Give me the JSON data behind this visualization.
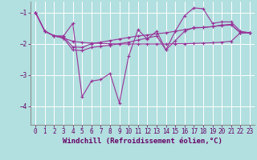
{
  "background_color": "#b2dfdf",
  "plot_bg_color": "#b2dfdf",
  "line_color": "#993399",
  "grid_color": "#ffffff",
  "spine_color": "#888888",
  "xlabel": "Windchill (Refroidissement éolien,°C)",
  "xlabel_fontsize": 6.5,
  "xlabel_color": "#660066",
  "tick_fontsize": 5.5,
  "tick_color": "#660066",
  "xlim": [
    -0.5,
    23.5
  ],
  "ylim": [
    -4.6,
    -0.65
  ],
  "yticks": [
    -4,
    -3,
    -2,
    -1
  ],
  "xticks": [
    0,
    1,
    2,
    3,
    4,
    5,
    6,
    7,
    8,
    9,
    10,
    11,
    12,
    13,
    14,
    15,
    16,
    17,
    18,
    19,
    20,
    21,
    22,
    23
  ],
  "series1": [
    [
      0,
      -1.0
    ],
    [
      1,
      -1.6
    ],
    [
      2,
      -1.75
    ],
    [
      3,
      -1.75
    ],
    [
      4,
      -1.35
    ],
    [
      5,
      -3.7
    ],
    [
      6,
      -3.2
    ],
    [
      7,
      -3.15
    ],
    [
      8,
      -2.95
    ],
    [
      9,
      -3.9
    ],
    [
      10,
      -2.4
    ],
    [
      11,
      -1.55
    ],
    [
      12,
      -1.85
    ],
    [
      13,
      -1.6
    ],
    [
      14,
      -2.2
    ],
    [
      15,
      -1.6
    ],
    [
      16,
      -1.1
    ],
    [
      17,
      -0.85
    ],
    [
      18,
      -0.88
    ],
    [
      19,
      -1.35
    ],
    [
      20,
      -1.3
    ],
    [
      21,
      -1.3
    ],
    [
      22,
      -1.6
    ],
    [
      23,
      -1.65
    ]
  ],
  "series2": [
    [
      0,
      -1.0
    ],
    [
      1,
      -1.6
    ],
    [
      2,
      -1.75
    ],
    [
      3,
      -1.78
    ],
    [
      4,
      -2.1
    ],
    [
      5,
      -2.12
    ],
    [
      6,
      -2.0
    ],
    [
      7,
      -1.95
    ],
    [
      8,
      -1.9
    ],
    [
      9,
      -1.85
    ],
    [
      10,
      -1.8
    ],
    [
      11,
      -1.75
    ],
    [
      12,
      -1.72
    ],
    [
      13,
      -1.68
    ],
    [
      14,
      -1.65
    ],
    [
      15,
      -1.6
    ],
    [
      16,
      -1.55
    ],
    [
      17,
      -1.5
    ],
    [
      18,
      -1.48
    ],
    [
      19,
      -1.45
    ],
    [
      20,
      -1.42
    ],
    [
      21,
      -1.4
    ],
    [
      22,
      -1.65
    ],
    [
      23,
      -1.65
    ]
  ],
  "series3": [
    [
      0,
      -1.0
    ],
    [
      1,
      -1.6
    ],
    [
      2,
      -1.75
    ],
    [
      3,
      -1.82
    ],
    [
      4,
      -1.92
    ],
    [
      5,
      -1.96
    ],
    [
      6,
      -1.98
    ],
    [
      7,
      -1.99
    ],
    [
      8,
      -2.0
    ],
    [
      9,
      -2.01
    ],
    [
      10,
      -2.01
    ],
    [
      11,
      -2.01
    ],
    [
      12,
      -2.01
    ],
    [
      13,
      -2.01
    ],
    [
      14,
      -2.01
    ],
    [
      15,
      -2.0
    ],
    [
      16,
      -2.0
    ],
    [
      17,
      -1.99
    ],
    [
      18,
      -1.98
    ],
    [
      19,
      -1.97
    ],
    [
      20,
      -1.95
    ],
    [
      21,
      -1.92
    ],
    [
      22,
      -1.65
    ],
    [
      23,
      -1.65
    ]
  ],
  "series4": [
    [
      0,
      -1.0
    ],
    [
      1,
      -1.6
    ],
    [
      2,
      -1.75
    ],
    [
      3,
      -1.82
    ],
    [
      4,
      -2.2
    ],
    [
      5,
      -2.22
    ],
    [
      6,
      -2.12
    ],
    [
      7,
      -2.08
    ],
    [
      8,
      -2.05
    ],
    [
      9,
      -2.0
    ],
    [
      10,
      -1.95
    ],
    [
      11,
      -1.88
    ],
    [
      12,
      -1.82
    ],
    [
      13,
      -1.75
    ],
    [
      14,
      -2.2
    ],
    [
      15,
      -1.9
    ],
    [
      16,
      -1.6
    ],
    [
      17,
      -1.48
    ],
    [
      18,
      -1.48
    ],
    [
      19,
      -1.45
    ],
    [
      20,
      -1.4
    ],
    [
      21,
      -1.38
    ],
    [
      22,
      -1.65
    ],
    [
      23,
      -1.65
    ]
  ]
}
